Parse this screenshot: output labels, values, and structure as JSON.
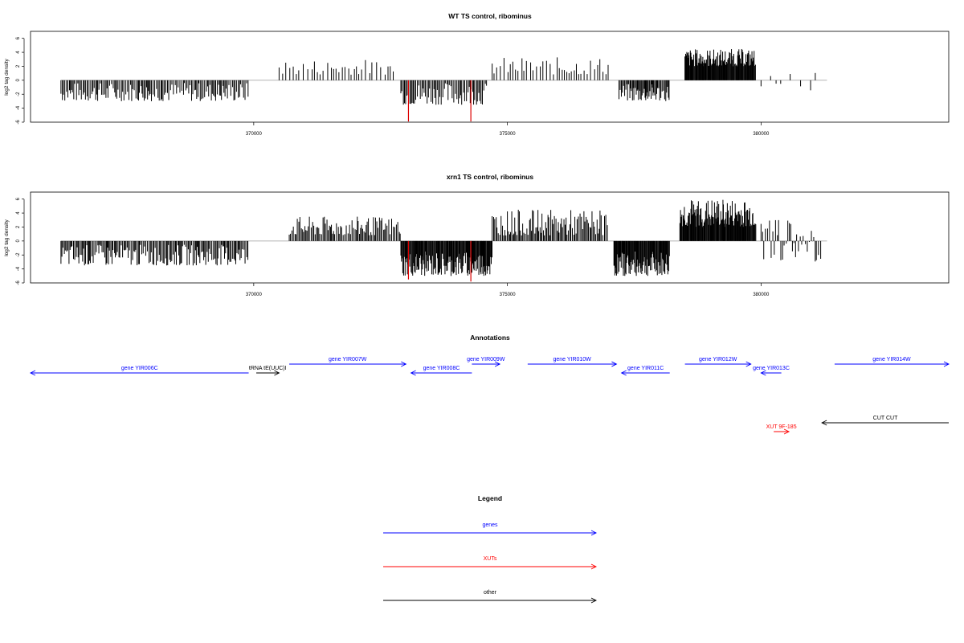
{
  "chart_data": [
    {
      "type": "bar",
      "title": "WT TS control, ribominus",
      "ylabel": "log2 tag density",
      "xlabel": "",
      "xlim": [
        365600,
        383700
      ],
      "ylim": [
        -6,
        7
      ],
      "yticks": [
        "6",
        "4",
        "2",
        "0",
        "-2",
        "-4",
        "-6"
      ],
      "xticks": [
        "370000",
        "375000",
        "380000"
      ],
      "xtick_values": [
        370000,
        375000,
        380000
      ],
      "bar_color": "#000000",
      "highlight_color": "#dd0000",
      "regions": [
        {
          "start": 366200,
          "end": 369900,
          "min": -3.0,
          "max": -0.3,
          "density": 0.45
        },
        {
          "start": 370500,
          "end": 372800,
          "min": 0.8,
          "max": 3.0,
          "density": 0.18
        },
        {
          "start": 372900,
          "end": 374600,
          "min": -3.5,
          "max": -0.3,
          "density": 0.45
        },
        {
          "start": 374700,
          "end": 377000,
          "min": 0.8,
          "max": 3.3,
          "density": 0.2
        },
        {
          "start": 377200,
          "end": 378200,
          "min": -3.0,
          "max": -0.5,
          "density": 0.65
        },
        {
          "start": 378500,
          "end": 379900,
          "min": 2.0,
          "max": 4.5,
          "density": 1.0
        },
        {
          "start": 380000,
          "end": 381100,
          "min": -1.0,
          "max": 1.5,
          "density": 0.08
        }
      ],
      "highlights": [
        {
          "x": 373050,
          "y": -5.9
        },
        {
          "x": 374280,
          "y": -5.9
        }
      ]
    },
    {
      "type": "bar",
      "title": "xrn1 TS control, ribominus",
      "ylabel": "log2 tag density",
      "xlabel": "",
      "xlim": [
        365600,
        383700
      ],
      "ylim": [
        -6,
        7
      ],
      "yticks": [
        "6",
        "4",
        "2",
        "0",
        "-2",
        "-4",
        "-6"
      ],
      "xticks": [
        "370000",
        "375000",
        "380000"
      ],
      "xtick_values": [
        370000,
        375000,
        380000
      ],
      "bar_color": "#000000",
      "highlight_color": "#dd0000",
      "regions": [
        {
          "start": 366200,
          "end": 369900,
          "min": -3.5,
          "max": -0.5,
          "density": 0.5
        },
        {
          "start": 370700,
          "end": 372900,
          "min": 0.8,
          "max": 3.5,
          "density": 0.45
        },
        {
          "start": 372900,
          "end": 374700,
          "min": -5.0,
          "max": -1.5,
          "density": 0.9
        },
        {
          "start": 374700,
          "end": 377000,
          "min": 0.8,
          "max": 4.5,
          "density": 0.5
        },
        {
          "start": 377100,
          "end": 378200,
          "min": -5.0,
          "max": -1.5,
          "density": 1.0
        },
        {
          "start": 378400,
          "end": 379900,
          "min": 2.0,
          "max": 6.0,
          "density": 1.0
        },
        {
          "start": 380000,
          "end": 381200,
          "min": -3.0,
          "max": 3.0,
          "density": 0.35
        }
      ],
      "highlights": [
        {
          "x": 373050,
          "y": -5.5
        },
        {
          "x": 374280,
          "y": -5.8
        }
      ]
    }
  ],
  "annotations": {
    "title": "Annotations",
    "features": [
      {
        "label": "gene YIR006C",
        "start": 365600,
        "end": 369900,
        "strand": "-",
        "kind": "gene",
        "row": 1
      },
      {
        "label": "tRNA tE(UUC)I",
        "start": 370050,
        "end": 370500,
        "strand": "+",
        "kind": "other",
        "row": 1
      },
      {
        "label": "gene YIR007W",
        "start": 370700,
        "end": 373000,
        "strand": "+",
        "kind": "gene",
        "row": 0
      },
      {
        "label": "gene YIR008C",
        "start": 373100,
        "end": 374300,
        "strand": "-",
        "kind": "gene",
        "row": 1
      },
      {
        "label": "gene YIR009W",
        "start": 374300,
        "end": 374850,
        "strand": "+",
        "kind": "gene",
        "row": 0
      },
      {
        "label": "gene YIR010W",
        "start": 375400,
        "end": 377150,
        "strand": "+",
        "kind": "gene",
        "row": 0
      },
      {
        "label": "gene YIR011C",
        "start": 377250,
        "end": 378200,
        "strand": "-",
        "kind": "gene",
        "row": 1
      },
      {
        "label": "gene YIR012W",
        "start": 378500,
        "end": 379800,
        "strand": "+",
        "kind": "gene",
        "row": 0
      },
      {
        "label": "gene YIR013C",
        "start": 380000,
        "end": 380400,
        "strand": "-",
        "kind": "gene",
        "row": 1
      },
      {
        "label": "gene YIR014W",
        "start": 381450,
        "end": 383700,
        "strand": "+",
        "kind": "gene",
        "row": 0
      },
      {
        "label": "XUT 9F-185",
        "start": 380250,
        "end": 380550,
        "strand": "+",
        "kind": "xut",
        "row": 2
      },
      {
        "label": "CUT CUT",
        "start": 381200,
        "end": 383700,
        "strand": "-",
        "kind": "other",
        "row": 3
      }
    ]
  },
  "legend": {
    "title": "Legend",
    "items": [
      {
        "label": "genes",
        "color": "#0000ff"
      },
      {
        "label": "XUTs",
        "color": "#ff0000"
      },
      {
        "label": "other",
        "color": "#000000"
      }
    ]
  },
  "colors": {
    "gene": "#0000ff",
    "xut": "#ff0000",
    "other": "#000000",
    "baseline": "#999999"
  }
}
